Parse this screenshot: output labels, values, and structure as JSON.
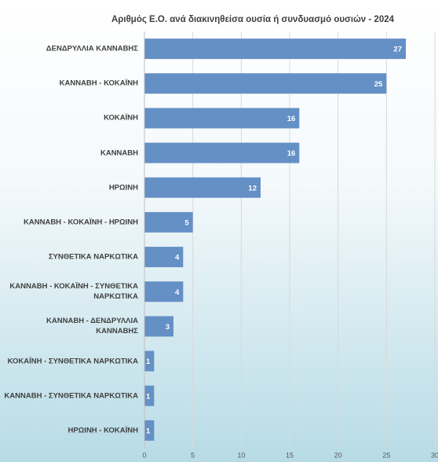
{
  "chart_data": {
    "type": "bar",
    "orientation": "horizontal",
    "title": "Αριθμός Ε.Ο. ανά διακινηθείσα ουσία ή συνδυασμό ουσιών - 2024",
    "categories": [
      "ΔΕΝΔΡΥΛΛΙΑ ΚΑΝΝΑΒΗΣ",
      "ΚΑΝΝΑΒΗ - ΚΟΚΑΪΝΗ",
      "ΚΟΚΑΪΝΗ",
      "ΚΑΝΝΑΒΗ",
      "ΗΡΩΙΝΗ",
      "ΚΑΝΝΑΒΗ - ΚΟΚΑΪΝΗ - ΗΡΩΙΝΗ",
      "ΣΥΝΘΕΤΙΚΑ ΝΑΡΚΩΤΙΚΑ",
      "ΚΑΝΝΑΒΗ - ΚΟΚΑΪΝΗ - ΣΥΝΘΕΤΙΚΑ ΝΑΡΚΩΤΙΚΑ",
      "ΚΑΝΝΑΒΗ - ΔΕΝΔΡΥΛΛΙΑ ΚΑΝΝΑΒΗΣ",
      "ΚΟΚΑΪΝΗ - ΣΥΝΘΕΤΙΚΑ ΝΑΡΚΩΤΙΚΑ",
      "ΚΑΝΝΑΒΗ  - ΣΥΝΘΕΤΙΚΑ ΝΑΡΚΩΤΙΚΑ",
      "ΗΡΩΙΝΗ - ΚΟΚΑΪΝΗ"
    ],
    "values": [
      27,
      25,
      16,
      16,
      12,
      5,
      4,
      4,
      3,
      1,
      1,
      1
    ],
    "color": "#6590c6",
    "xlim": [
      0,
      30
    ],
    "xticks": [
      0,
      5,
      10,
      15,
      20,
      25,
      30
    ],
    "grid": true
  }
}
